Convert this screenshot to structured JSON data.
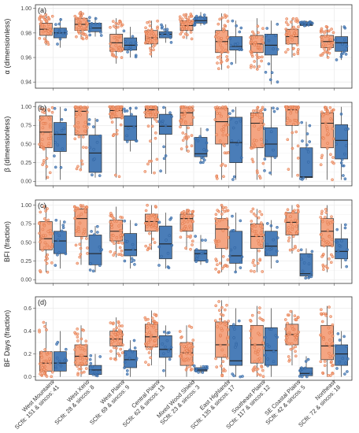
{
  "chart_data": {
    "type": "box",
    "colors": {
      "sc": "#F4A582",
      "sc_point": "#E07040",
      "sincos": "#4A7DB8",
      "sincos_point": "#2C5F9E"
    },
    "categories": [
      {
        "line1": "West Mountains",
        "line2": "SCfit: 151 & sincos: 41"
      },
      {
        "line1": "West Xeric",
        "line2": "SCfit: 28 & sincos: 8"
      },
      {
        "line1": "West Plains",
        "line2": "SCfit: 69 & sincos: 9"
      },
      {
        "line1": "Central Plains",
        "line2": "SCfit: 62 & sincos: 13"
      },
      {
        "line1": "Mixed Wood Shield",
        "line2": "SCfit: 23 & sincos: 3"
      },
      {
        "line1": "East Highlands",
        "line2": "SCfit: 135 & sincos: 17"
      },
      {
        "line1": "Southeast Plains",
        "line2": "SCfit: 117 & sincos: 12"
      },
      {
        "line1": "SE Coastal Plains",
        "line2": "SCfit: 42 & sincos: 5"
      },
      {
        "line1": "Northeast",
        "line2": "SCfit: 72 & sincos: 18"
      }
    ],
    "panels": [
      {
        "tag": "(a)",
        "ylabel": "α (dimensionless)",
        "ylim": [
          0.935,
          1.003
        ],
        "yticks": [
          0.94,
          0.96,
          0.98,
          1.0
        ],
        "yticklabels": [
          "0.94",
          "0.96",
          "0.98",
          "1.00"
        ],
        "series": [
          {
            "name": "SCfit",
            "boxes": [
              [
                0.97,
                0.978,
                0.983,
                0.988,
                0.995
              ],
              [
                0.975,
                0.982,
                0.987,
                0.992,
                0.998
              ],
              [
                0.955,
                0.965,
                0.972,
                0.979,
                0.992
              ],
              [
                0.96,
                0.971,
                0.976,
                0.982,
                0.99
              ],
              [
                0.975,
                0.982,
                0.986,
                0.99,
                0.996
              ],
              [
                0.95,
                0.964,
                0.973,
                0.982,
                0.996
              ],
              [
                0.95,
                0.964,
                0.971,
                0.978,
                0.992
              ],
              [
                0.96,
                0.971,
                0.977,
                0.983,
                0.992
              ],
              [
                0.96,
                0.968,
                0.973,
                0.978,
                0.986
              ]
            ]
          },
          {
            "name": "sincos",
            "boxes": [
              [
                0.968,
                0.976,
                0.98,
                0.984,
                0.992
              ],
              [
                0.977,
                0.981,
                0.984,
                0.988,
                0.993
              ],
              [
                0.96,
                0.966,
                0.97,
                0.976,
                0.985
              ],
              [
                0.972,
                0.976,
                0.979,
                0.981,
                0.987
              ],
              [
                0.986,
                0.988,
                0.99,
                0.993,
                0.997
              ],
              [
                0.955,
                0.966,
                0.969,
                0.977,
                0.99
              ],
              [
                0.938,
                0.962,
                0.97,
                0.979,
                0.99
              ],
              [
                0.985,
                0.986,
                0.987,
                0.989,
                0.99
              ],
              [
                0.958,
                0.965,
                0.972,
                0.977,
                0.986
              ]
            ]
          }
        ]
      },
      {
        "tag": "(b)",
        "ylabel": "β (dimensionless)",
        "ylim": [
          -0.06,
          1.06
        ],
        "yticks": [
          0.0,
          0.25,
          0.5,
          0.75,
          1.0
        ],
        "yticklabels": [
          "0.00",
          "0.25",
          "0.50",
          "0.75",
          "1.00"
        ],
        "series": [
          {
            "name": "SCfit",
            "boxes": [
              [
                0.02,
                0.45,
                0.66,
                0.88,
                1.0
              ],
              [
                0.15,
                0.62,
                0.94,
                0.99,
                1.0
              ],
              [
                0.05,
                0.85,
                0.95,
                1.0,
                1.0
              ],
              [
                0.1,
                0.85,
                0.96,
                1.0,
                1.0
              ],
              [
                0.4,
                0.75,
                0.92,
                0.99,
                1.0
              ],
              [
                0.02,
                0.5,
                0.8,
                0.98,
                1.0
              ],
              [
                0.02,
                0.45,
                0.78,
                0.92,
                1.0
              ],
              [
                0.05,
                0.75,
                0.96,
                1.0,
                1.0
              ],
              [
                0.02,
                0.45,
                0.78,
                0.92,
                1.0
              ]
            ]
          },
          {
            "name": "sincos",
            "boxes": [
              [
                0.02,
                0.4,
                0.63,
                0.79,
                1.0
              ],
              [
                0.05,
                0.12,
                0.38,
                0.62,
                0.85
              ],
              [
                0.4,
                0.55,
                0.74,
                0.88,
                1.0
              ],
              [
                0.1,
                0.63,
                0.74,
                0.9,
                1.0
              ],
              [
                0.25,
                0.33,
                0.37,
                0.59,
                0.72
              ],
              [
                0.02,
                0.25,
                0.52,
                0.86,
                1.0
              ],
              [
                0.08,
                0.33,
                0.5,
                0.72,
                1.0
              ],
              [
                0.02,
                0.05,
                0.06,
                0.45,
                0.8
              ],
              [
                0.02,
                0.3,
                0.55,
                0.76,
                1.0
              ]
            ]
          }
        ]
      },
      {
        "tag": "(c)",
        "ylabel": "BFI (fraction)",
        "ylim": [
          -0.05,
          1.07
        ],
        "yticks": [
          0.0,
          0.25,
          0.5,
          0.75,
          1.0
        ],
        "yticklabels": [
          "0.00",
          "0.25",
          "0.50",
          "0.75",
          "1.00"
        ],
        "series": [
          {
            "name": "SCfit",
            "boxes": [
              [
                0.1,
                0.4,
                0.55,
                0.78,
                1.0
              ],
              [
                0.2,
                0.58,
                0.82,
                0.95,
                1.0
              ],
              [
                0.3,
                0.52,
                0.65,
                0.8,
                0.98
              ],
              [
                0.4,
                0.65,
                0.78,
                0.88,
                1.0
              ],
              [
                0.4,
                0.65,
                0.82,
                0.88,
                0.95
              ],
              [
                0.1,
                0.42,
                0.68,
                0.82,
                1.0
              ],
              [
                0.1,
                0.42,
                0.58,
                0.75,
                0.95
              ],
              [
                0.35,
                0.6,
                0.77,
                0.9,
                1.0
              ],
              [
                0.1,
                0.45,
                0.65,
                0.82,
                1.0
              ]
            ]
          },
          {
            "name": "sincos",
            "boxes": [
              [
                0.15,
                0.35,
                0.52,
                0.65,
                0.8
              ],
              [
                0.1,
                0.2,
                0.35,
                0.6,
                0.72
              ],
              [
                0.15,
                0.32,
                0.4,
                0.62,
                0.8
              ],
              [
                0.15,
                0.28,
                0.48,
                0.72,
                0.9
              ],
              [
                0.2,
                0.25,
                0.35,
                0.4,
                0.6
              ],
              [
                0.1,
                0.22,
                0.32,
                0.65,
                0.9
              ],
              [
                0.15,
                0.32,
                0.45,
                0.65,
                0.8
              ],
              [
                0.02,
                0.05,
                0.08,
                0.35,
                0.42
              ],
              [
                0.15,
                0.28,
                0.38,
                0.55,
                0.75
              ]
            ]
          }
        ]
      },
      {
        "tag": "(d)",
        "ylabel": "BF Days (fraction)",
        "ylim": [
          -0.03,
          0.7
        ],
        "yticks": [
          0.0,
          0.2,
          0.4,
          0.6
        ],
        "yticklabels": [
          "0.0",
          "0.2",
          "0.4",
          "0.6"
        ],
        "series": [
          {
            "name": "SCfit",
            "boxes": [
              [
                0.0,
                0.05,
                0.12,
                0.22,
                0.48
              ],
              [
                0.0,
                0.1,
                0.18,
                0.28,
                0.45
              ],
              [
                0.15,
                0.27,
                0.33,
                0.4,
                0.52
              ],
              [
                0.1,
                0.26,
                0.35,
                0.46,
                0.58
              ],
              [
                0.0,
                0.1,
                0.21,
                0.3,
                0.45
              ],
              [
                0.0,
                0.17,
                0.28,
                0.48,
                0.67
              ],
              [
                0.0,
                0.12,
                0.28,
                0.45,
                0.62
              ],
              [
                0.1,
                0.28,
                0.37,
                0.46,
                0.58
              ],
              [
                0.0,
                0.15,
                0.27,
                0.45,
                0.62
              ]
            ]
          },
          {
            "name": "sincos",
            "boxes": [
              [
                0.0,
                0.05,
                0.12,
                0.22,
                0.4
              ],
              [
                0.0,
                0.02,
                0.06,
                0.1,
                0.2
              ],
              [
                0.0,
                0.08,
                0.15,
                0.23,
                0.32
              ],
              [
                0.0,
                0.17,
                0.24,
                0.36,
                0.45
              ],
              [
                0.03,
                0.05,
                0.06,
                0.08,
                0.1
              ],
              [
                0.0,
                0.1,
                0.14,
                0.45,
                0.6
              ],
              [
                0.0,
                0.1,
                0.23,
                0.43,
                0.6
              ],
              [
                0.0,
                0.01,
                0.03,
                0.08,
                0.18
              ],
              [
                0.0,
                0.1,
                0.2,
                0.28,
                0.4
              ]
            ]
          }
        ]
      }
    ]
  }
}
